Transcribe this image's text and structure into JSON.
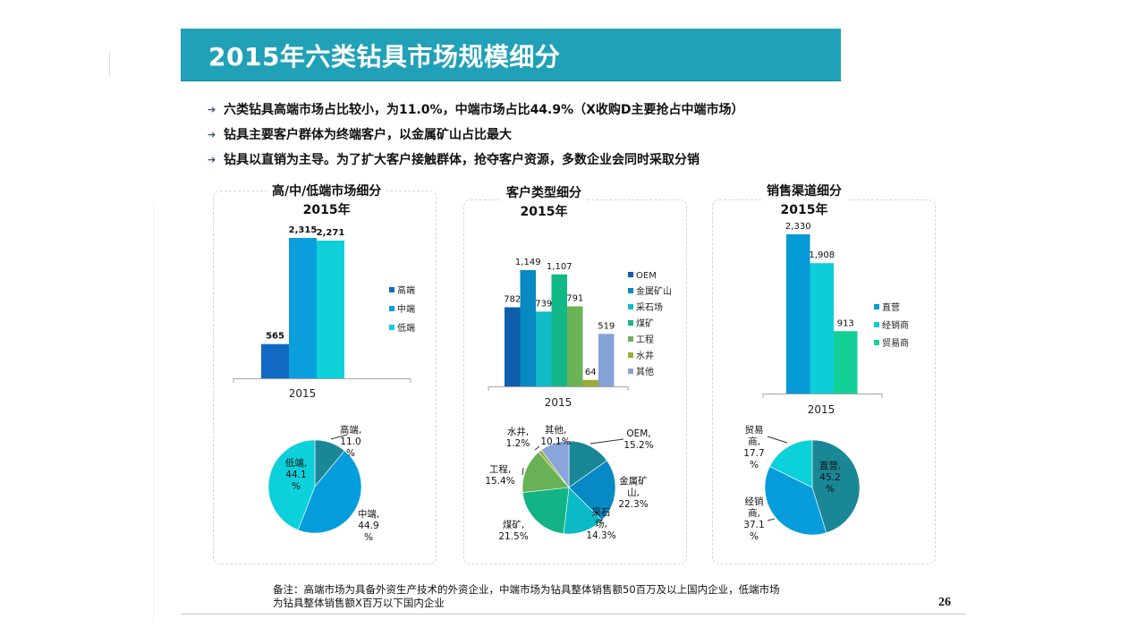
{
  "title": "2015年六类钻具市场规模细分",
  "bullets": [
    "六类钻具高端市场占比较小，为11.0%，中端市场占比44.9%（X收购D主要抢占中端市场）",
    "钻具主要客户群体为终端客户，以金属矿山占比最大",
    "钻具以直销为主导。为了扩大客户接触群体，抢夺客户资源，多数企业会同时采取分销"
  ],
  "footnote": "备注：高端市场为具备外资生产技术的外资企业，中端市场为钻具整体销售额50百万及以上国内企业，低端市场为钻具整体销售额X百万以下国内企业",
  "page_number": "26",
  "panels": [
    {
      "title_line1": "高/中/低端市场细分",
      "title_line2": "2015年"
    },
    {
      "title_line1": "客户类型细分",
      "title_line2": "2015年"
    },
    {
      "title_line1": "销售渠道细分",
      "title_line2": "2015年"
    }
  ],
  "chart_data": [
    {
      "type": "bar",
      "title": "高/中/低端市场细分 2015年",
      "categories": [
        "2015"
      ],
      "series": [
        {
          "name": "高端",
          "values": [
            565
          ],
          "color": "#1169c3",
          "label": "565"
        },
        {
          "name": "中端",
          "values": [
            2315
          ],
          "color": "#0a9fdc",
          "label": "2,315"
        },
        {
          "name": "低端",
          "values": [
            2271
          ],
          "color": "#0dd0d8",
          "label": "2,271"
        }
      ],
      "ylim": [
        0,
        2315
      ],
      "legend": "right"
    },
    {
      "type": "pie",
      "title": "高/中/低端市场细分 占比",
      "slices": [
        {
          "name": "高端",
          "value": 11.0,
          "label": "11.0%",
          "color": "#1a8796"
        },
        {
          "name": "中端",
          "value": 44.9,
          "label": "44.9%",
          "color": "#059ddb"
        },
        {
          "name": "低端",
          "value": 44.1,
          "label": "44.1%",
          "color": "#0cd0da"
        }
      ]
    },
    {
      "type": "bar",
      "title": "客户类型细分 2015年",
      "categories": [
        "2015"
      ],
      "series": [
        {
          "name": "OEM",
          "values": [
            782
          ],
          "color": "#0d5fae",
          "label": "782"
        },
        {
          "name": "金属矿山",
          "values": [
            1149
          ],
          "color": "#0889c2",
          "label": "1,149"
        },
        {
          "name": "采石场",
          "values": [
            739
          ],
          "color": "#0fbcc8",
          "label": "739"
        },
        {
          "name": "煤矿",
          "values": [
            1107
          ],
          "color": "#12b888",
          "label": "1,107"
        },
        {
          "name": "工程",
          "values": [
            791
          ],
          "color": "#6ab357",
          "label": "791"
        },
        {
          "name": "水井",
          "values": [
            64
          ],
          "color": "#9aad35",
          "label": "64"
        },
        {
          "name": "其他",
          "values": [
            519
          ],
          "color": "#85a2d6",
          "label": "519"
        }
      ],
      "ylim": [
        0,
        1149
      ],
      "legend": "right"
    },
    {
      "type": "pie",
      "title": "客户类型细分 占比",
      "slices": [
        {
          "name": "OEM",
          "value": 15.2,
          "label": "15.2%",
          "color": "#1a8796"
        },
        {
          "name": "金属矿山",
          "value": 22.3,
          "label": "22.3%",
          "color": "#0689c4"
        },
        {
          "name": "采石场",
          "value": 14.3,
          "label": "14.3%",
          "color": "#0bbac6"
        },
        {
          "name": "煤矿",
          "value": 21.5,
          "label": "21.5%",
          "color": "#12b485"
        },
        {
          "name": "工程",
          "value": 15.4,
          "label": "15.4%",
          "color": "#6ab155"
        },
        {
          "name": "水井",
          "value": 1.2,
          "label": "1.2%",
          "color": "#9aad35"
        },
        {
          "name": "其他",
          "value": 10.1,
          "label": "10.1%",
          "color": "#8aa5da"
        }
      ]
    },
    {
      "type": "bar",
      "title": "销售渠道细分 2015年",
      "categories": [
        "2015"
      ],
      "series": [
        {
          "name": "直营",
          "values": [
            2330
          ],
          "color": "#069ad6",
          "label": "2,330"
        },
        {
          "name": "经销商",
          "values": [
            1908
          ],
          "color": "#0ccdd8",
          "label": "1,908"
        },
        {
          "name": "贸易商",
          "values": [
            913
          ],
          "color": "#12cf98",
          "label": "913"
        }
      ],
      "ylim": [
        0,
        2330
      ],
      "legend": "right"
    },
    {
      "type": "pie",
      "title": "销售渠道细分 占比",
      "slices": [
        {
          "name": "直营",
          "value": 45.2,
          "label": "45.2%",
          "color": "#1a8796"
        },
        {
          "name": "经销商",
          "value": 37.1,
          "label": "37.1%",
          "color": "#079ddc"
        },
        {
          "name": "贸易商",
          "value": 17.7,
          "label": "17.7%",
          "color": "#0cd0da"
        }
      ]
    }
  ]
}
